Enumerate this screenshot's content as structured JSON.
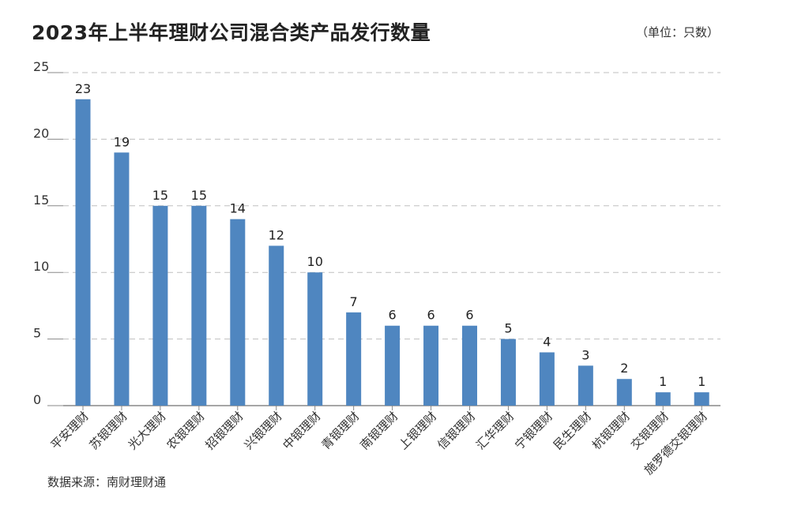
{
  "chart_data": {
    "type": "bar",
    "title": "2023年上半年理财公司混合类产品发行数量",
    "unit_note": "（单位：只数）",
    "source": "数据来源：南财理财通",
    "categories": [
      "平安理财",
      "苏银理财",
      "光大理财",
      "农银理财",
      "招银理财",
      "兴银理财",
      "中银理财",
      "青银理财",
      "南银理财",
      "上银理财",
      "信银理财",
      "汇华理财",
      "宁银理财",
      "民生理财",
      "杭银理财",
      "交银理财",
      "施罗德交银理财"
    ],
    "values": [
      23,
      19,
      15,
      15,
      14,
      12,
      10,
      7,
      6,
      6,
      6,
      5,
      4,
      3,
      2,
      1,
      1
    ],
    "yticks": [
      0,
      5,
      10,
      15,
      20,
      25
    ],
    "ylim": [
      0,
      25
    ],
    "grid": true,
    "xlabel": "",
    "ylabel": "",
    "colors": {
      "bar": "#4f86c0",
      "grid": "#bfbfbf",
      "axis": "#888888"
    }
  }
}
